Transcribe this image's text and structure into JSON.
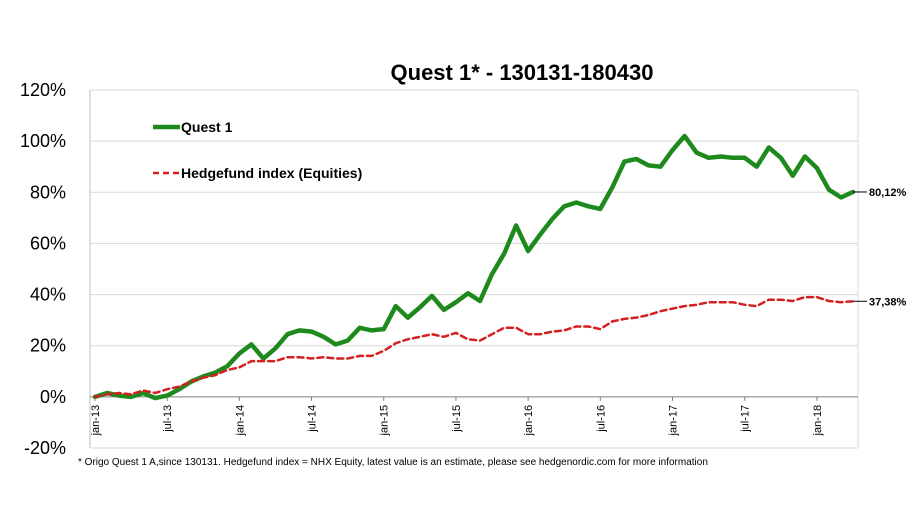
{
  "chart_data": {
    "type": "line",
    "title": "Quest 1* - 130131-180430",
    "xlabel": "",
    "ylabel": "",
    "ylim": [
      -20,
      120
    ],
    "y_ticks": [
      "120%",
      "100%",
      "80%",
      "60%",
      "40%",
      "20%",
      "0%",
      "-20%"
    ],
    "y_tick_values": [
      120,
      100,
      80,
      60,
      40,
      20,
      0,
      -20
    ],
    "x_tick_labels": [
      "jan-13",
      "jul-13",
      "jan-14",
      "jul-14",
      "jan-15",
      "jul-15",
      "jan-16",
      "jul-16",
      "jan-17",
      "jul-17",
      "jan-18"
    ],
    "x_tick_index": [
      0,
      6,
      12,
      18,
      24,
      30,
      36,
      42,
      48,
      54,
      60
    ],
    "grid": "horizontal",
    "legend_position": "top-left",
    "series": [
      {
        "name": "Quest 1",
        "color": "#1e8a1e",
        "style": "solid",
        "end_label": "80,12%",
        "values": [
          0,
          1.5,
          0.5,
          0,
          1.5,
          -0.5,
          0.5,
          3,
          6,
          8,
          9.5,
          12,
          17,
          20.5,
          15,
          19,
          24.5,
          26,
          25.5,
          23.5,
          20.5,
          22,
          27,
          26,
          26.5,
          35.5,
          31,
          35,
          39.5,
          34,
          37,
          40.5,
          37.5,
          48,
          56,
          67,
          57,
          63.5,
          69.5,
          74.5,
          76,
          74.5,
          73.5,
          82,
          92,
          93,
          90.5,
          90,
          96.5,
          102,
          95.5,
          93.5,
          94,
          93.5,
          93.5,
          90,
          97.5,
          93.5,
          86.5,
          94,
          89.5,
          81,
          78,
          80.12
        ]
      },
      {
        "name": "Hedgefund index (Equities)",
        "color": "#d42020",
        "style": "dashed",
        "end_label": "37,38%",
        "values": [
          0,
          1,
          1.5,
          1,
          2.5,
          1.5,
          3,
          4,
          6,
          7.5,
          8.5,
          10.5,
          11.5,
          14,
          14,
          14,
          15.5,
          15.5,
          15,
          15.5,
          15,
          15,
          16,
          16,
          18,
          21,
          22.5,
          23.5,
          24.5,
          23.5,
          25,
          22.5,
          22,
          24.5,
          27,
          27,
          24.5,
          24.5,
          25.5,
          26,
          27.5,
          27.5,
          26.5,
          29.5,
          30.5,
          31,
          32,
          33.5,
          34.5,
          35.5,
          36,
          37,
          37,
          37,
          36,
          35.5,
          38,
          38,
          37.5,
          39,
          39,
          37.5,
          37,
          37.38
        ]
      }
    ]
  },
  "footnote": "* Origo Quest 1 A,since 130131. Hedgefund index = NHX Equity, latest value is an estimate, please see hedgenordic.com  for more information"
}
